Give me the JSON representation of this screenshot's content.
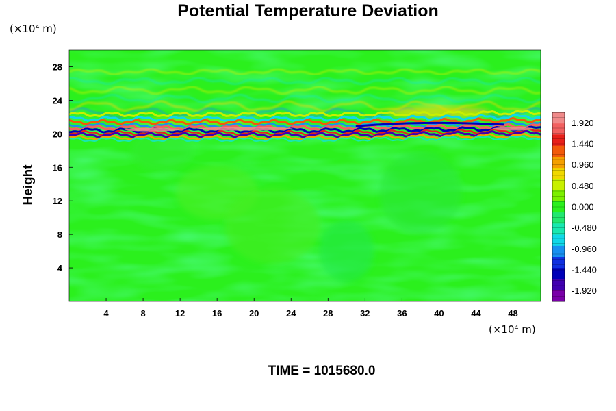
{
  "chart_data": {
    "type": "heatmap",
    "title": "Potential Temperature Deviation",
    "xlabel": "",
    "ylabel": "Height",
    "x_unit": "(×10⁴ m)",
    "y_unit": "(×10⁴ m)",
    "x_ticks": [
      "4",
      "8",
      "12",
      "16",
      "20",
      "24",
      "28",
      "32",
      "36",
      "40",
      "44",
      "48"
    ],
    "y_ticks": [
      "4",
      "8",
      "12",
      "16",
      "20",
      "24",
      "28"
    ],
    "xlim": [
      0,
      51
    ],
    "ylim": [
      0,
      30
    ],
    "colorbar": {
      "ticks": [
        "1.920",
        "1.440",
        "0.960",
        "0.480",
        "0.000",
        "-0.480",
        "-0.960",
        "-1.440",
        "-1.920"
      ],
      "range": [
        -2.16,
        2.16
      ]
    },
    "features": [
      {
        "kind": "band",
        "y_center": 20.4,
        "x_start": 0,
        "x_end": 51,
        "description_values": [
          -1.9,
          1.9
        ]
      }
    ],
    "footer": "TIME = 1015680.0"
  },
  "colors": {
    "background_field": "#2bf01d",
    "colorbar_top": "#f08a8a",
    "colorbar_bottom": "#7a00a8"
  }
}
